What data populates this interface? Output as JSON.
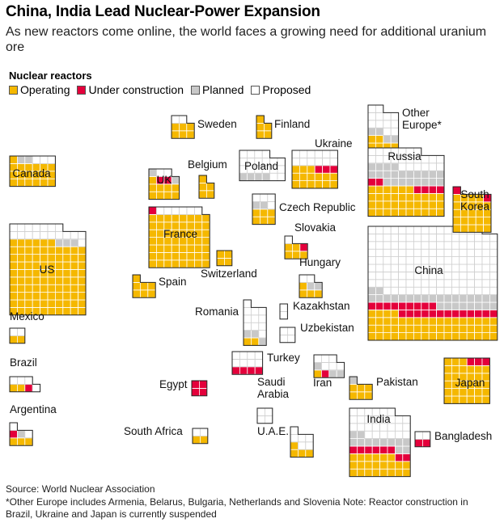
{
  "title": "China, India Lead Nuclear-Power Expansion",
  "subtitle": "As new reactors come online, the world faces a growing need for additional uranium ore",
  "legend": {
    "title": "Nuclear reactors",
    "items": [
      {
        "key": "operating",
        "label": "Operating",
        "color": "#F5B800"
      },
      {
        "key": "construction",
        "label": "Under construction",
        "color": "#E4003B"
      },
      {
        "key": "planned",
        "label": "Planned",
        "color": "#C8C8C8"
      },
      {
        "key": "proposed",
        "label": "Proposed",
        "color": "#FFFFFF"
      }
    ]
  },
  "source": "Source: World Nuclear Association",
  "note": "*Other Europe includes Armenia, Belarus, Bulgaria, Netherlands and Slovenia Note: Reactor construction in Brazil, Ukraine and Japan is currently suspended",
  "chart_data": {
    "type": "table",
    "unit": "Nuclear reactors",
    "columns": [
      "country",
      "operating",
      "under_construction",
      "planned",
      "proposed"
    ],
    "countries": [
      {
        "name": "Canada",
        "operating": 19,
        "construction": 0,
        "planned": 2,
        "proposed": 3
      },
      {
        "name": "US",
        "operating": 96,
        "construction": 0,
        "planned": 3,
        "proposed": 18
      },
      {
        "name": "Mexico",
        "operating": 2,
        "construction": 0,
        "planned": 0,
        "proposed": 2
      },
      {
        "name": "Brazil",
        "operating": 2,
        "construction": 1,
        "planned": 0,
        "proposed": 4
      },
      {
        "name": "Argentina",
        "operating": 3,
        "construction": 1,
        "planned": 1,
        "proposed": 2
      },
      {
        "name": "Sweden",
        "operating": 6,
        "construction": 0,
        "planned": 0,
        "proposed": 2
      },
      {
        "name": "Finland",
        "operating": 5,
        "construction": 0,
        "planned": 0,
        "proposed": 0
      },
      {
        "name": "UK",
        "operating": 9,
        "construction": 2,
        "planned": 2,
        "proposed": 2
      },
      {
        "name": "Belgium",
        "operating": 5,
        "construction": 0,
        "planned": 0,
        "proposed": 0
      },
      {
        "name": "France",
        "operating": 56,
        "construction": 1,
        "planned": 0,
        "proposed": 6
      },
      {
        "name": "Switzerland",
        "operating": 4,
        "construction": 0,
        "planned": 0,
        "proposed": 0
      },
      {
        "name": "Spain",
        "operating": 7,
        "construction": 0,
        "planned": 0,
        "proposed": 0
      },
      {
        "name": "Poland",
        "operating": 0,
        "construction": 0,
        "planned": 4,
        "proposed": 18
      },
      {
        "name": "Czech Republic",
        "operating": 6,
        "construction": 0,
        "planned": 2,
        "proposed": 4
      },
      {
        "name": "Slovakia",
        "operating": 5,
        "construction": 1,
        "planned": 0,
        "proposed": 1
      },
      {
        "name": "Hungary",
        "operating": 4,
        "construction": 0,
        "planned": 2,
        "proposed": 2
      },
      {
        "name": "Romania",
        "operating": 2,
        "construction": 0,
        "planned": 3,
        "proposed": 11
      },
      {
        "name": "Ukraine",
        "operating": 15,
        "construction": 3,
        "planned": 0,
        "proposed": 12
      },
      {
        "name": "Other Europe*",
        "operating": 10,
        "construction": 0,
        "planned": 4,
        "proposed": 12
      },
      {
        "name": "Russia",
        "operating": 36,
        "construction": 6,
        "planned": 22,
        "proposed": 23
      },
      {
        "name": "Kazakhstan",
        "operating": 0,
        "construction": 0,
        "planned": 0,
        "proposed": 2
      },
      {
        "name": "Uzbekistan",
        "operating": 0,
        "construction": 0,
        "planned": 0,
        "proposed": 4
      },
      {
        "name": "Turkey",
        "operating": 0,
        "construction": 4,
        "planned": 0,
        "proposed": 8
      },
      {
        "name": "Egypt",
        "operating": 0,
        "construction": 4,
        "planned": 0,
        "proposed": 0
      },
      {
        "name": "Saudi Arabia",
        "operating": 0,
        "construction": 0,
        "planned": 0,
        "proposed": 4
      },
      {
        "name": "Iran",
        "operating": 1,
        "construction": 1,
        "planned": 3,
        "proposed": 6
      },
      {
        "name": "Pakistan",
        "operating": 6,
        "construction": 0,
        "planned": 1,
        "proposed": 0
      },
      {
        "name": "U.A.E.",
        "operating": 4,
        "construction": 0,
        "planned": 0,
        "proposed": 6
      },
      {
        "name": "South Africa",
        "operating": 2,
        "construction": 0,
        "planned": 0,
        "proposed": 2
      },
      {
        "name": "India",
        "operating": 22,
        "construction": 8,
        "planned": 12,
        "proposed": 28
      },
      {
        "name": "Bangladesh",
        "operating": 0,
        "construction": 2,
        "planned": 0,
        "proposed": 2
      },
      {
        "name": "China",
        "operating": 55,
        "construction": 22,
        "planned": 27,
        "proposed": 149
      },
      {
        "name": "South Korea",
        "operating": 24,
        "construction": 2,
        "planned": 0,
        "proposed": 0
      },
      {
        "name": "Japan",
        "operating": 33,
        "construction": 3,
        "planned": 0,
        "proposed": 0
      }
    ]
  }
}
